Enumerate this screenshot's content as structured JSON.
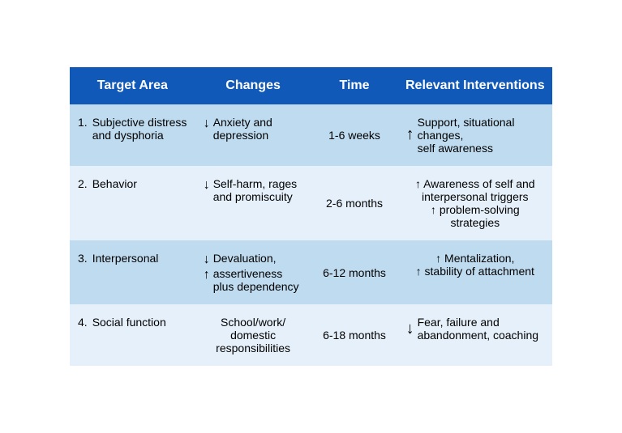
{
  "table": {
    "header_bg": "#1059b8",
    "header_text_color": "#ffffff",
    "row_alt_bg": "#bfdbef",
    "row_bg": "#e6f0fa",
    "columns": [
      {
        "key": "target",
        "label": "Target Area"
      },
      {
        "key": "changes",
        "label": "Changes"
      },
      {
        "key": "time",
        "label": "Time"
      },
      {
        "key": "intv",
        "label": "Relevant Interventions"
      }
    ],
    "rows": [
      {
        "num": "1.",
        "target": "Subjective distress and dysphoria",
        "changes_arrow": "↓",
        "changes": "Anxiety and depression",
        "time": "1-6 weeks",
        "intv_arrow": "↑",
        "intv": "Support, situational changes,\nself awareness"
      },
      {
        "num": "2.",
        "target": "Behavior",
        "changes_arrow": "↓",
        "changes": "Self-harm, rages and promiscuity",
        "time": "2-6 months",
        "intv_lines": [
          {
            "arrow": "↑",
            "text": "Awareness of self and interpersonal triggers"
          },
          {
            "arrow": "↑",
            "text": "problem-solving strategies"
          }
        ]
      },
      {
        "num": "3.",
        "target": "Interpersonal",
        "changes_lines": [
          {
            "arrow": "↓",
            "text": "Devaluation,"
          },
          {
            "arrow": "↑",
            "text": "assertiveness plus dependency"
          }
        ],
        "time": "6-12 months",
        "intv_lines": [
          {
            "arrow": "↑",
            "text": "Mentalization,"
          },
          {
            "arrow": "↑",
            "text": "stability of attachment"
          }
        ]
      },
      {
        "num": "4.",
        "target": "Social function",
        "changes": "School/work/\ndomestic responsibilities",
        "time": "6-18 months",
        "intv_arrow": "↓",
        "intv": "Fear, failure and abandonment, coaching"
      }
    ]
  }
}
